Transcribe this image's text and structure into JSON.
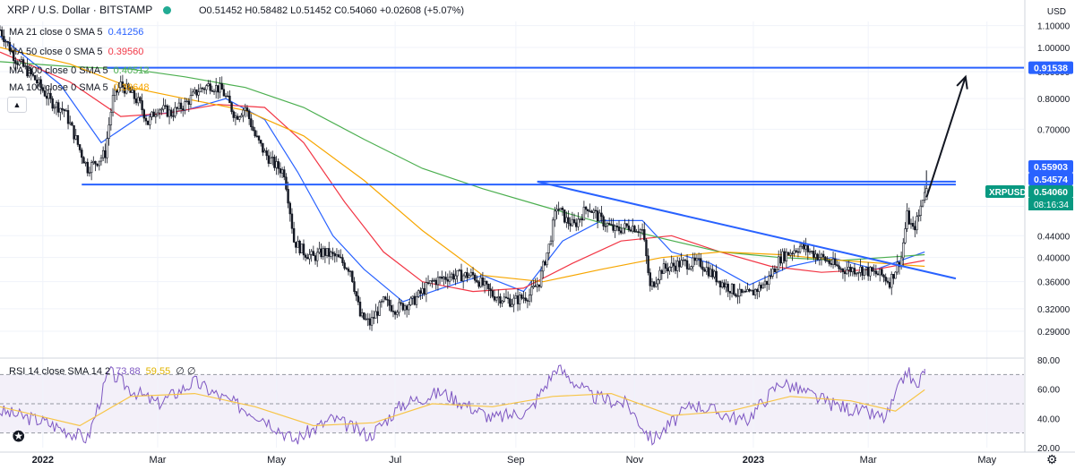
{
  "header": {
    "title": "XRP / U.S. Dollar · BITSTAMP",
    "ohlc": "O0.51452 H0.58482 L0.51452 C0.54060 +0.02608 (+5.07%)",
    "currency": "USD"
  },
  "legend": {
    "ma": [
      {
        "label": "MA 21 close 0 SMA 5",
        "value": "0.41256",
        "color": "#2962ff"
      },
      {
        "label": "MA 50 close 0 SMA 5",
        "value": "0.39560",
        "color": "#f23645"
      },
      {
        "label": "MA 200 close 0 SMA 5",
        "value": "0.40512",
        "color": "#4caf50"
      },
      {
        "label": "MA 100 close 0 SMA 5",
        "value": "0.38648",
        "color": "#f7a600"
      }
    ],
    "rsi": {
      "label": "RSI 14 close SMA 14 2",
      "value": "73.88",
      "sma_value": "59.55",
      "extra": "∅ ∅",
      "color": "#7e57c2",
      "sma_color": "#f7c548"
    }
  },
  "chart_data": [
    {
      "type": "candlestick",
      "title": "XRP / U.S. Dollar · BITSTAMP",
      "y_scale": "log",
      "ylim": [
        0.26,
        1.12
      ],
      "xlim": [
        "2021-12-10",
        "2023-05-20"
      ],
      "x_ticks": [
        {
          "date": "2022-01-01",
          "label": "2022"
        },
        {
          "date": "2022-03-01",
          "label": "Mar"
        },
        {
          "date": "2022-05-01",
          "label": "May"
        },
        {
          "date": "2022-07-01",
          "label": "Jul"
        },
        {
          "date": "2022-09-01",
          "label": "Sep"
        },
        {
          "date": "2022-11-01",
          "label": "Nov"
        },
        {
          "date": "2023-01-01",
          "label": "2023"
        },
        {
          "date": "2023-03-01",
          "label": "Mar"
        },
        {
          "date": "2023-05-01",
          "label": "May"
        }
      ],
      "y_ticks": [
        "0.29000",
        "0.32000",
        "0.36000",
        "0.40000",
        "0.44000",
        "0.50000",
        "0.70000",
        "0.80000",
        "0.90000",
        "1.00000",
        "1.10000"
      ],
      "price_tags": [
        {
          "label": "0.91538",
          "value": 0.91538,
          "color": "#2962ff"
        },
        {
          "label": "0.55903",
          "value": 0.55903,
          "color": "#2962ff"
        },
        {
          "label": "0.54574",
          "value": 0.54574,
          "color": "#2962ff"
        },
        {
          "label": "0.54060",
          "value": 0.5406,
          "color": "#089981"
        }
      ],
      "symbol_tag": {
        "label": "XRPUSD",
        "countdown": "08:16:34",
        "color": "#089981"
      },
      "price_path": [
        [
          "2021-12-10",
          1.08
        ],
        [
          "2021-12-18",
          0.95
        ],
        [
          "2021-12-28",
          0.87
        ],
        [
          "2022-01-05",
          0.79
        ],
        [
          "2022-01-12",
          0.76
        ],
        [
          "2022-01-20",
          0.64
        ],
        [
          "2022-01-24",
          0.59
        ],
        [
          "2022-01-29",
          0.61
        ],
        [
          "2022-02-02",
          0.63
        ],
        [
          "2022-02-06",
          0.8
        ],
        [
          "2022-02-10",
          0.85
        ],
        [
          "2022-02-15",
          0.82
        ],
        [
          "2022-02-20",
          0.78
        ],
        [
          "2022-02-24",
          0.72
        ],
        [
          "2022-03-01",
          0.77
        ],
        [
          "2022-03-08",
          0.75
        ],
        [
          "2022-03-15",
          0.78
        ],
        [
          "2022-03-22",
          0.83
        ],
        [
          "2022-03-28",
          0.85
        ],
        [
          "2022-04-03",
          0.83
        ],
        [
          "2022-04-10",
          0.74
        ],
        [
          "2022-04-15",
          0.77
        ],
        [
          "2022-04-20",
          0.68
        ],
        [
          "2022-04-25",
          0.63
        ],
        [
          "2022-04-30",
          0.6
        ],
        [
          "2022-05-05",
          0.58
        ],
        [
          "2022-05-10",
          0.43
        ],
        [
          "2022-05-15",
          0.41
        ],
        [
          "2022-05-20",
          0.4
        ],
        [
          "2022-05-25",
          0.41
        ],
        [
          "2022-06-01",
          0.4
        ],
        [
          "2022-06-08",
          0.38
        ],
        [
          "2022-06-13",
          0.31
        ],
        [
          "2022-06-18",
          0.3
        ],
        [
          "2022-06-25",
          0.33
        ],
        [
          "2022-07-01",
          0.32
        ],
        [
          "2022-07-10",
          0.33
        ],
        [
          "2022-07-20",
          0.36
        ],
        [
          "2022-07-30",
          0.37
        ],
        [
          "2022-08-10",
          0.37
        ],
        [
          "2022-08-20",
          0.34
        ],
        [
          "2022-08-30",
          0.33
        ],
        [
          "2022-09-08",
          0.34
        ],
        [
          "2022-09-13",
          0.36
        ],
        [
          "2022-09-18",
          0.42
        ],
        [
          "2022-09-22",
          0.5
        ],
        [
          "2022-09-27",
          0.47
        ],
        [
          "2022-10-01",
          0.46
        ],
        [
          "2022-10-08",
          0.5
        ],
        [
          "2022-10-15",
          0.47
        ],
        [
          "2022-10-22",
          0.45
        ],
        [
          "2022-10-30",
          0.46
        ],
        [
          "2022-11-05",
          0.45
        ],
        [
          "2022-11-09",
          0.35
        ],
        [
          "2022-11-15",
          0.38
        ],
        [
          "2022-11-25",
          0.39
        ],
        [
          "2022-12-05",
          0.39
        ],
        [
          "2022-12-15",
          0.36
        ],
        [
          "2022-12-25",
          0.34
        ],
        [
          "2022-12-30",
          0.34
        ],
        [
          "2023-01-08",
          0.36
        ],
        [
          "2023-01-15",
          0.4
        ],
        [
          "2023-01-25",
          0.42
        ],
        [
          "2023-02-05",
          0.4
        ],
        [
          "2023-02-15",
          0.38
        ],
        [
          "2023-02-25",
          0.38
        ],
        [
          "2023-03-08",
          0.37
        ],
        [
          "2023-03-12",
          0.36
        ],
        [
          "2023-03-18",
          0.4
        ],
        [
          "2023-03-21",
          0.48
        ],
        [
          "2023-03-24",
          0.45
        ],
        [
          "2023-03-27",
          0.48
        ],
        [
          "2023-03-29",
          0.52
        ],
        [
          "2023-03-30",
          0.54
        ]
      ],
      "moving_averages": [
        {
          "label": "MA 21",
          "color": "#2962ff",
          "points": [
            [
              "2021-12-10",
              1.05
            ],
            [
              "2022-01-10",
              0.85
            ],
            [
              "2022-01-31",
              0.66
            ],
            [
              "2022-02-20",
              0.74
            ],
            [
              "2022-03-15",
              0.76
            ],
            [
              "2022-04-05",
              0.8
            ],
            [
              "2022-04-25",
              0.73
            ],
            [
              "2022-05-12",
              0.58
            ],
            [
              "2022-05-30",
              0.44
            ],
            [
              "2022-06-15",
              0.38
            ],
            [
              "2022-07-05",
              0.33
            ],
            [
              "2022-07-25",
              0.35
            ],
            [
              "2022-08-15",
              0.37
            ],
            [
              "2022-09-05",
              0.345
            ],
            [
              "2022-09-25",
              0.43
            ],
            [
              "2022-10-15",
              0.47
            ],
            [
              "2022-11-05",
              0.47
            ],
            [
              "2022-11-20",
              0.41
            ],
            [
              "2022-12-10",
              0.39
            ],
            [
              "2022-12-30",
              0.355
            ],
            [
              "2023-01-20",
              0.385
            ],
            [
              "2023-02-10",
              0.4
            ],
            [
              "2023-03-05",
              0.38
            ],
            [
              "2023-03-30",
              0.41
            ]
          ]
        },
        {
          "label": "MA 50",
          "color": "#f23645",
          "points": [
            [
              "2021-12-10",
              0.98
            ],
            [
              "2022-01-15",
              0.86
            ],
            [
              "2022-02-10",
              0.74
            ],
            [
              "2022-03-05",
              0.75
            ],
            [
              "2022-04-01",
              0.78
            ],
            [
              "2022-04-25",
              0.77
            ],
            [
              "2022-05-15",
              0.66
            ],
            [
              "2022-06-05",
              0.51
            ],
            [
              "2022-06-25",
              0.41
            ],
            [
              "2022-07-15",
              0.36
            ],
            [
              "2022-08-10",
              0.345
            ],
            [
              "2022-09-05",
              0.35
            ],
            [
              "2022-09-30",
              0.39
            ],
            [
              "2022-10-25",
              0.43
            ],
            [
              "2022-11-20",
              0.44
            ],
            [
              "2022-12-15",
              0.41
            ],
            [
              "2023-01-10",
              0.385
            ],
            [
              "2023-02-05",
              0.375
            ],
            [
              "2023-03-05",
              0.38
            ],
            [
              "2023-03-30",
              0.395
            ]
          ]
        },
        {
          "label": "MA 200",
          "color": "#4caf50",
          "points": [
            [
              "2021-12-10",
              0.94
            ],
            [
              "2022-01-15",
              0.92
            ],
            [
              "2022-02-15",
              0.91
            ],
            [
              "2022-03-15",
              0.88
            ],
            [
              "2022-04-15",
              0.84
            ],
            [
              "2022-05-15",
              0.77
            ],
            [
              "2022-06-15",
              0.67
            ],
            [
              "2022-07-15",
              0.59
            ],
            [
              "2022-08-15",
              0.54
            ],
            [
              "2022-09-15",
              0.5
            ],
            [
              "2022-10-15",
              0.465
            ],
            [
              "2022-11-15",
              0.435
            ],
            [
              "2022-12-15",
              0.41
            ],
            [
              "2023-01-15",
              0.4
            ],
            [
              "2023-02-15",
              0.395
            ],
            [
              "2023-03-30",
              0.405
            ]
          ]
        },
        {
          "label": "MA 100",
          "color": "#f7a600",
          "points": [
            [
              "2021-12-10",
              1.0
            ],
            [
              "2022-01-15",
              0.93
            ],
            [
              "2022-02-15",
              0.84
            ],
            [
              "2022-03-15",
              0.8
            ],
            [
              "2022-04-15",
              0.76
            ],
            [
              "2022-05-15",
              0.68
            ],
            [
              "2022-06-15",
              0.56
            ],
            [
              "2022-07-15",
              0.45
            ],
            [
              "2022-08-15",
              0.37
            ],
            [
              "2022-09-15",
              0.36
            ],
            [
              "2022-10-15",
              0.38
            ],
            [
              "2022-11-15",
              0.4
            ],
            [
              "2022-12-15",
              0.41
            ],
            [
              "2023-01-15",
              0.405
            ],
            [
              "2023-02-15",
              0.395
            ],
            [
              "2023-03-30",
              0.385
            ]
          ]
        }
      ],
      "drawings": [
        {
          "kind": "hline",
          "value": 0.91538,
          "from": "2022-02-03",
          "to": "2023-05-31",
          "color": "#2962ff"
        },
        {
          "kind": "hline",
          "value": 0.55,
          "from": "2022-01-21",
          "to": "2023-04-15",
          "color": "#2962ff"
        },
        {
          "kind": "hline",
          "value": 0.557,
          "from": "2022-09-12",
          "to": "2023-04-15",
          "color": "#2962ff"
        },
        {
          "kind": "trendline",
          "points": [
            [
              "2022-09-12",
              0.557
            ],
            [
              "2023-04-15",
              0.365
            ]
          ],
          "color": "#2962ff"
        },
        {
          "kind": "arrow",
          "points": [
            [
              "2023-03-31",
              0.52
            ],
            [
              "2023-04-20",
              0.88
            ]
          ],
          "color": "#131722"
        }
      ]
    },
    {
      "type": "line",
      "title": "RSI 14 close SMA 14 2",
      "ylim": [
        20,
        80
      ],
      "y_ticks": [
        "20.00",
        "40.00",
        "60.00",
        "80.00"
      ],
      "bands": [
        30,
        50,
        70
      ],
      "series": [
        {
          "name": "RSI",
          "color": "#7e57c2",
          "points": [
            [
              "2021-12-10",
              45
            ],
            [
              "2022-01-01",
              38
            ],
            [
              "2022-01-24",
              26
            ],
            [
              "2022-02-04",
              72
            ],
            [
              "2022-02-15",
              60
            ],
            [
              "2022-03-01",
              50
            ],
            [
              "2022-03-20",
              65
            ],
            [
              "2022-04-02",
              55
            ],
            [
              "2022-04-25",
              40
            ],
            [
              "2022-05-10",
              25
            ],
            [
              "2022-05-30",
              40
            ],
            [
              "2022-06-18",
              28
            ],
            [
              "2022-07-05",
              50
            ],
            [
              "2022-07-25",
              58
            ],
            [
              "2022-08-20",
              40
            ],
            [
              "2022-09-08",
              45
            ],
            [
              "2022-09-22",
              75
            ],
            [
              "2022-10-10",
              55
            ],
            [
              "2022-10-28",
              50
            ],
            [
              "2022-11-10",
              25
            ],
            [
              "2022-12-01",
              50
            ],
            [
              "2022-12-28",
              38
            ],
            [
              "2023-01-15",
              65
            ],
            [
              "2023-02-10",
              50
            ],
            [
              "2023-03-10",
              40
            ],
            [
              "2023-03-21",
              73
            ],
            [
              "2023-03-26",
              60
            ],
            [
              "2023-03-30",
              73.88
            ]
          ]
        },
        {
          "name": "SMA",
          "color": "#f7c548",
          "points": [
            [
              "2021-12-10",
              48
            ],
            [
              "2022-01-20",
              35
            ],
            [
              "2022-02-15",
              55
            ],
            [
              "2022-03-20",
              57
            ],
            [
              "2022-04-20",
              48
            ],
            [
              "2022-05-20",
              35
            ],
            [
              "2022-06-20",
              37
            ],
            [
              "2022-07-20",
              50
            ],
            [
              "2022-08-20",
              48
            ],
            [
              "2022-09-20",
              55
            ],
            [
              "2022-10-20",
              57
            ],
            [
              "2022-11-20",
              42
            ],
            [
              "2022-12-20",
              45
            ],
            [
              "2023-01-20",
              55
            ],
            [
              "2023-02-20",
              52
            ],
            [
              "2023-03-15",
              45
            ],
            [
              "2023-03-30",
              59.55
            ]
          ]
        }
      ]
    }
  ]
}
